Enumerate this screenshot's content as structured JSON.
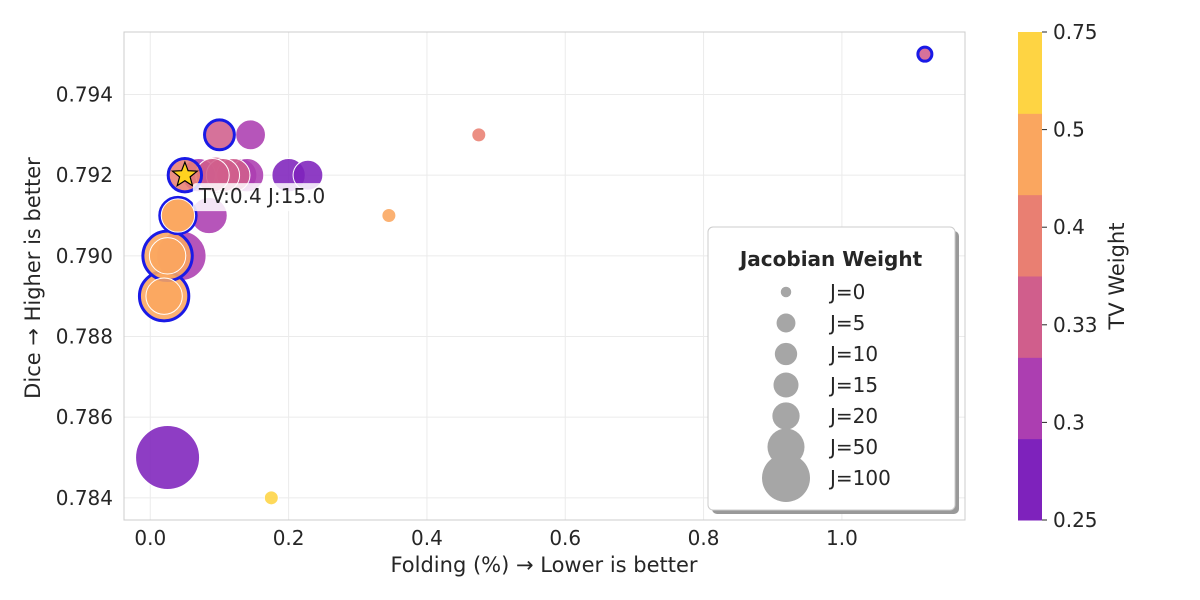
{
  "chart_data": {
    "type": "scatter",
    "xlabel": "Folding (%) → Lower is better",
    "ylabel": "Dice → Higher is better",
    "xlim": [
      -0.038,
      1.178
    ],
    "ylim": [
      0.78345,
      0.79555
    ],
    "x_ticks": [
      "0.0",
      "0.2",
      "0.4",
      "0.6",
      "0.8",
      "1.0"
    ],
    "x_tick_values": [
      0.0,
      0.2,
      0.4,
      0.6,
      0.8,
      1.0
    ],
    "y_ticks": [
      "0.784",
      "0.786",
      "0.788",
      "0.790",
      "0.792",
      "0.794"
    ],
    "y_tick_values": [
      0.784,
      0.786,
      0.788,
      0.79,
      0.792,
      0.794
    ],
    "grid": true,
    "size_legend": {
      "title": "Jacobian Weight",
      "placement": "lower-right",
      "entries": [
        {
          "label": "J=0",
          "j": 0
        },
        {
          "label": "J=5",
          "j": 5
        },
        {
          "label": "J=10",
          "j": 10
        },
        {
          "label": "J=15",
          "j": 15
        },
        {
          "label": "J=20",
          "j": 20
        },
        {
          "label": "J=50",
          "j": 50
        },
        {
          "label": "J=100",
          "j": 100
        }
      ]
    },
    "colorbar": {
      "label": "TV Weight",
      "tick_labels": [
        "0.25",
        "0.3",
        "0.33",
        "0.4",
        "0.5",
        "0.75"
      ],
      "colors": [
        "#7e22bc",
        "#ac3eb1",
        "#d05e8c",
        "#e97f72",
        "#faa65f",
        "#fed443"
      ]
    },
    "points": [
      {
        "x": 0.025,
        "y": 0.785,
        "tv": 0.25,
        "j": 100,
        "pareto": false
      },
      {
        "x": 0.045,
        "y": 0.79,
        "tv": 0.3,
        "j": 50,
        "pareto": false
      },
      {
        "x": 0.085,
        "y": 0.791,
        "tv": 0.3,
        "j": 20,
        "pareto": false
      },
      {
        "x": 0.02,
        "y": 0.789,
        "tv": 0.5,
        "j": 20,
        "pareto": false
      },
      {
        "x": 0.025,
        "y": 0.79,
        "tv": 0.5,
        "j": 20,
        "pareto": false
      },
      {
        "x": 0.04,
        "y": 0.791,
        "tv": 0.5,
        "j": 15,
        "pareto": false
      },
      {
        "x": 0.07,
        "y": 0.792,
        "tv": 0.3,
        "j": 15,
        "pareto": false
      },
      {
        "x": 0.13,
        "y": 0.792,
        "tv": 0.3,
        "j": 15,
        "pareto": false
      },
      {
        "x": 0.14,
        "y": 0.792,
        "tv": 0.3,
        "j": 15,
        "pareto": false
      },
      {
        "x": 0.12,
        "y": 0.792,
        "tv": 0.33,
        "j": 15,
        "pareto": false
      },
      {
        "x": 0.105,
        "y": 0.792,
        "tv": 0.33,
        "j": 15,
        "pareto": false
      },
      {
        "x": 0.09,
        "y": 0.792,
        "tv": 0.33,
        "j": 15,
        "pareto": false
      },
      {
        "x": 0.2,
        "y": 0.792,
        "tv": 0.25,
        "j": 15,
        "pareto": false
      },
      {
        "x": 0.228,
        "y": 0.792,
        "tv": 0.25,
        "j": 10,
        "pareto": false
      },
      {
        "x": 0.145,
        "y": 0.793,
        "tv": 0.3,
        "j": 10,
        "pareto": false
      },
      {
        "x": 0.02,
        "y": 0.789,
        "tv": 0.5,
        "j": 50,
        "pareto": true
      },
      {
        "x": 0.025,
        "y": 0.79,
        "tv": 0.5,
        "j": 50,
        "pareto": true
      },
      {
        "x": 0.04,
        "y": 0.791,
        "tv": 0.5,
        "j": 20,
        "pareto": true
      },
      {
        "x": 0.05,
        "y": 0.792,
        "tv": 0.4,
        "j": 15,
        "pareto": true
      },
      {
        "x": 0.1,
        "y": 0.793,
        "tv": 0.33,
        "j": 10,
        "pareto": true
      },
      {
        "x": 0.095,
        "y": 0.792,
        "tv": 0.33,
        "j": 20,
        "pareto": false
      },
      {
        "x": 0.475,
        "y": 0.793,
        "tv": 0.4,
        "j": 0,
        "pareto": false
      },
      {
        "x": 0.345,
        "y": 0.791,
        "tv": 0.5,
        "j": 0,
        "pareto": false
      },
      {
        "x": 0.175,
        "y": 0.784,
        "tv": 0.75,
        "j": 0,
        "pareto": false
      },
      {
        "x": 1.12,
        "y": 0.795,
        "tv": 0.33,
        "j": 0,
        "pareto": true
      }
    ],
    "highlight": {
      "x": 0.05,
      "y": 0.792,
      "label": "TV:0.4 J:15.0",
      "marker": "star",
      "color": "#ffd21f"
    }
  }
}
